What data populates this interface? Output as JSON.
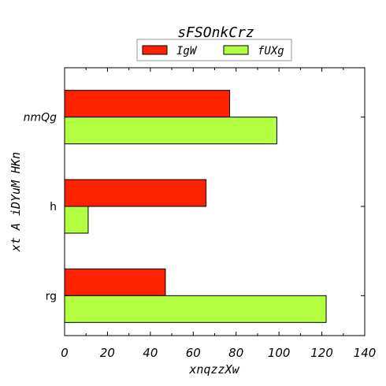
{
  "chart_data": {
    "type": "bar",
    "orientation": "horizontal",
    "title": "sFSOnkCrz",
    "xlabel": "xnqzzXw",
    "ylabel": "xt A iDYuM HKn",
    "categories": [
      "nmQg",
      "h",
      "rg"
    ],
    "series": [
      {
        "name": "IgW",
        "values": [
          77,
          66,
          47
        ],
        "color": "#ff2200"
      },
      {
        "name": "fUXg",
        "values": [
          99,
          11,
          122
        ],
        "color": "#b3ff42"
      }
    ],
    "xlim": [
      0,
      140
    ],
    "xticks": [
      "0",
      "20",
      "40",
      "60",
      "80",
      "100",
      "120",
      "140"
    ],
    "grid": false,
    "legend_position": "top-center"
  }
}
